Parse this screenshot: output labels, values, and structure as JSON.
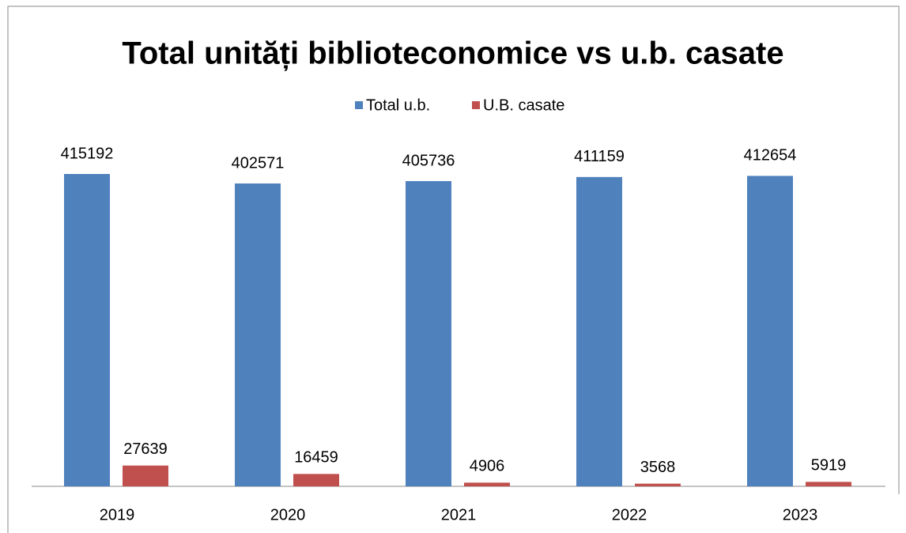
{
  "chart_data": {
    "type": "bar",
    "title": "Total unități biblioteconomice vs u.b. casate",
    "categories": [
      "2019",
      "2020",
      "2021",
      "2022",
      "2023"
    ],
    "series": [
      {
        "name": "Total u.b.",
        "color": "#4f81bd",
        "values": [
          415192,
          402571,
          405736,
          411159,
          412654
        ]
      },
      {
        "name": "U.B. casate",
        "color": "#c0504d",
        "values": [
          27639,
          16459,
          4906,
          3568,
          5919
        ]
      }
    ],
    "legend": "top"
  }
}
